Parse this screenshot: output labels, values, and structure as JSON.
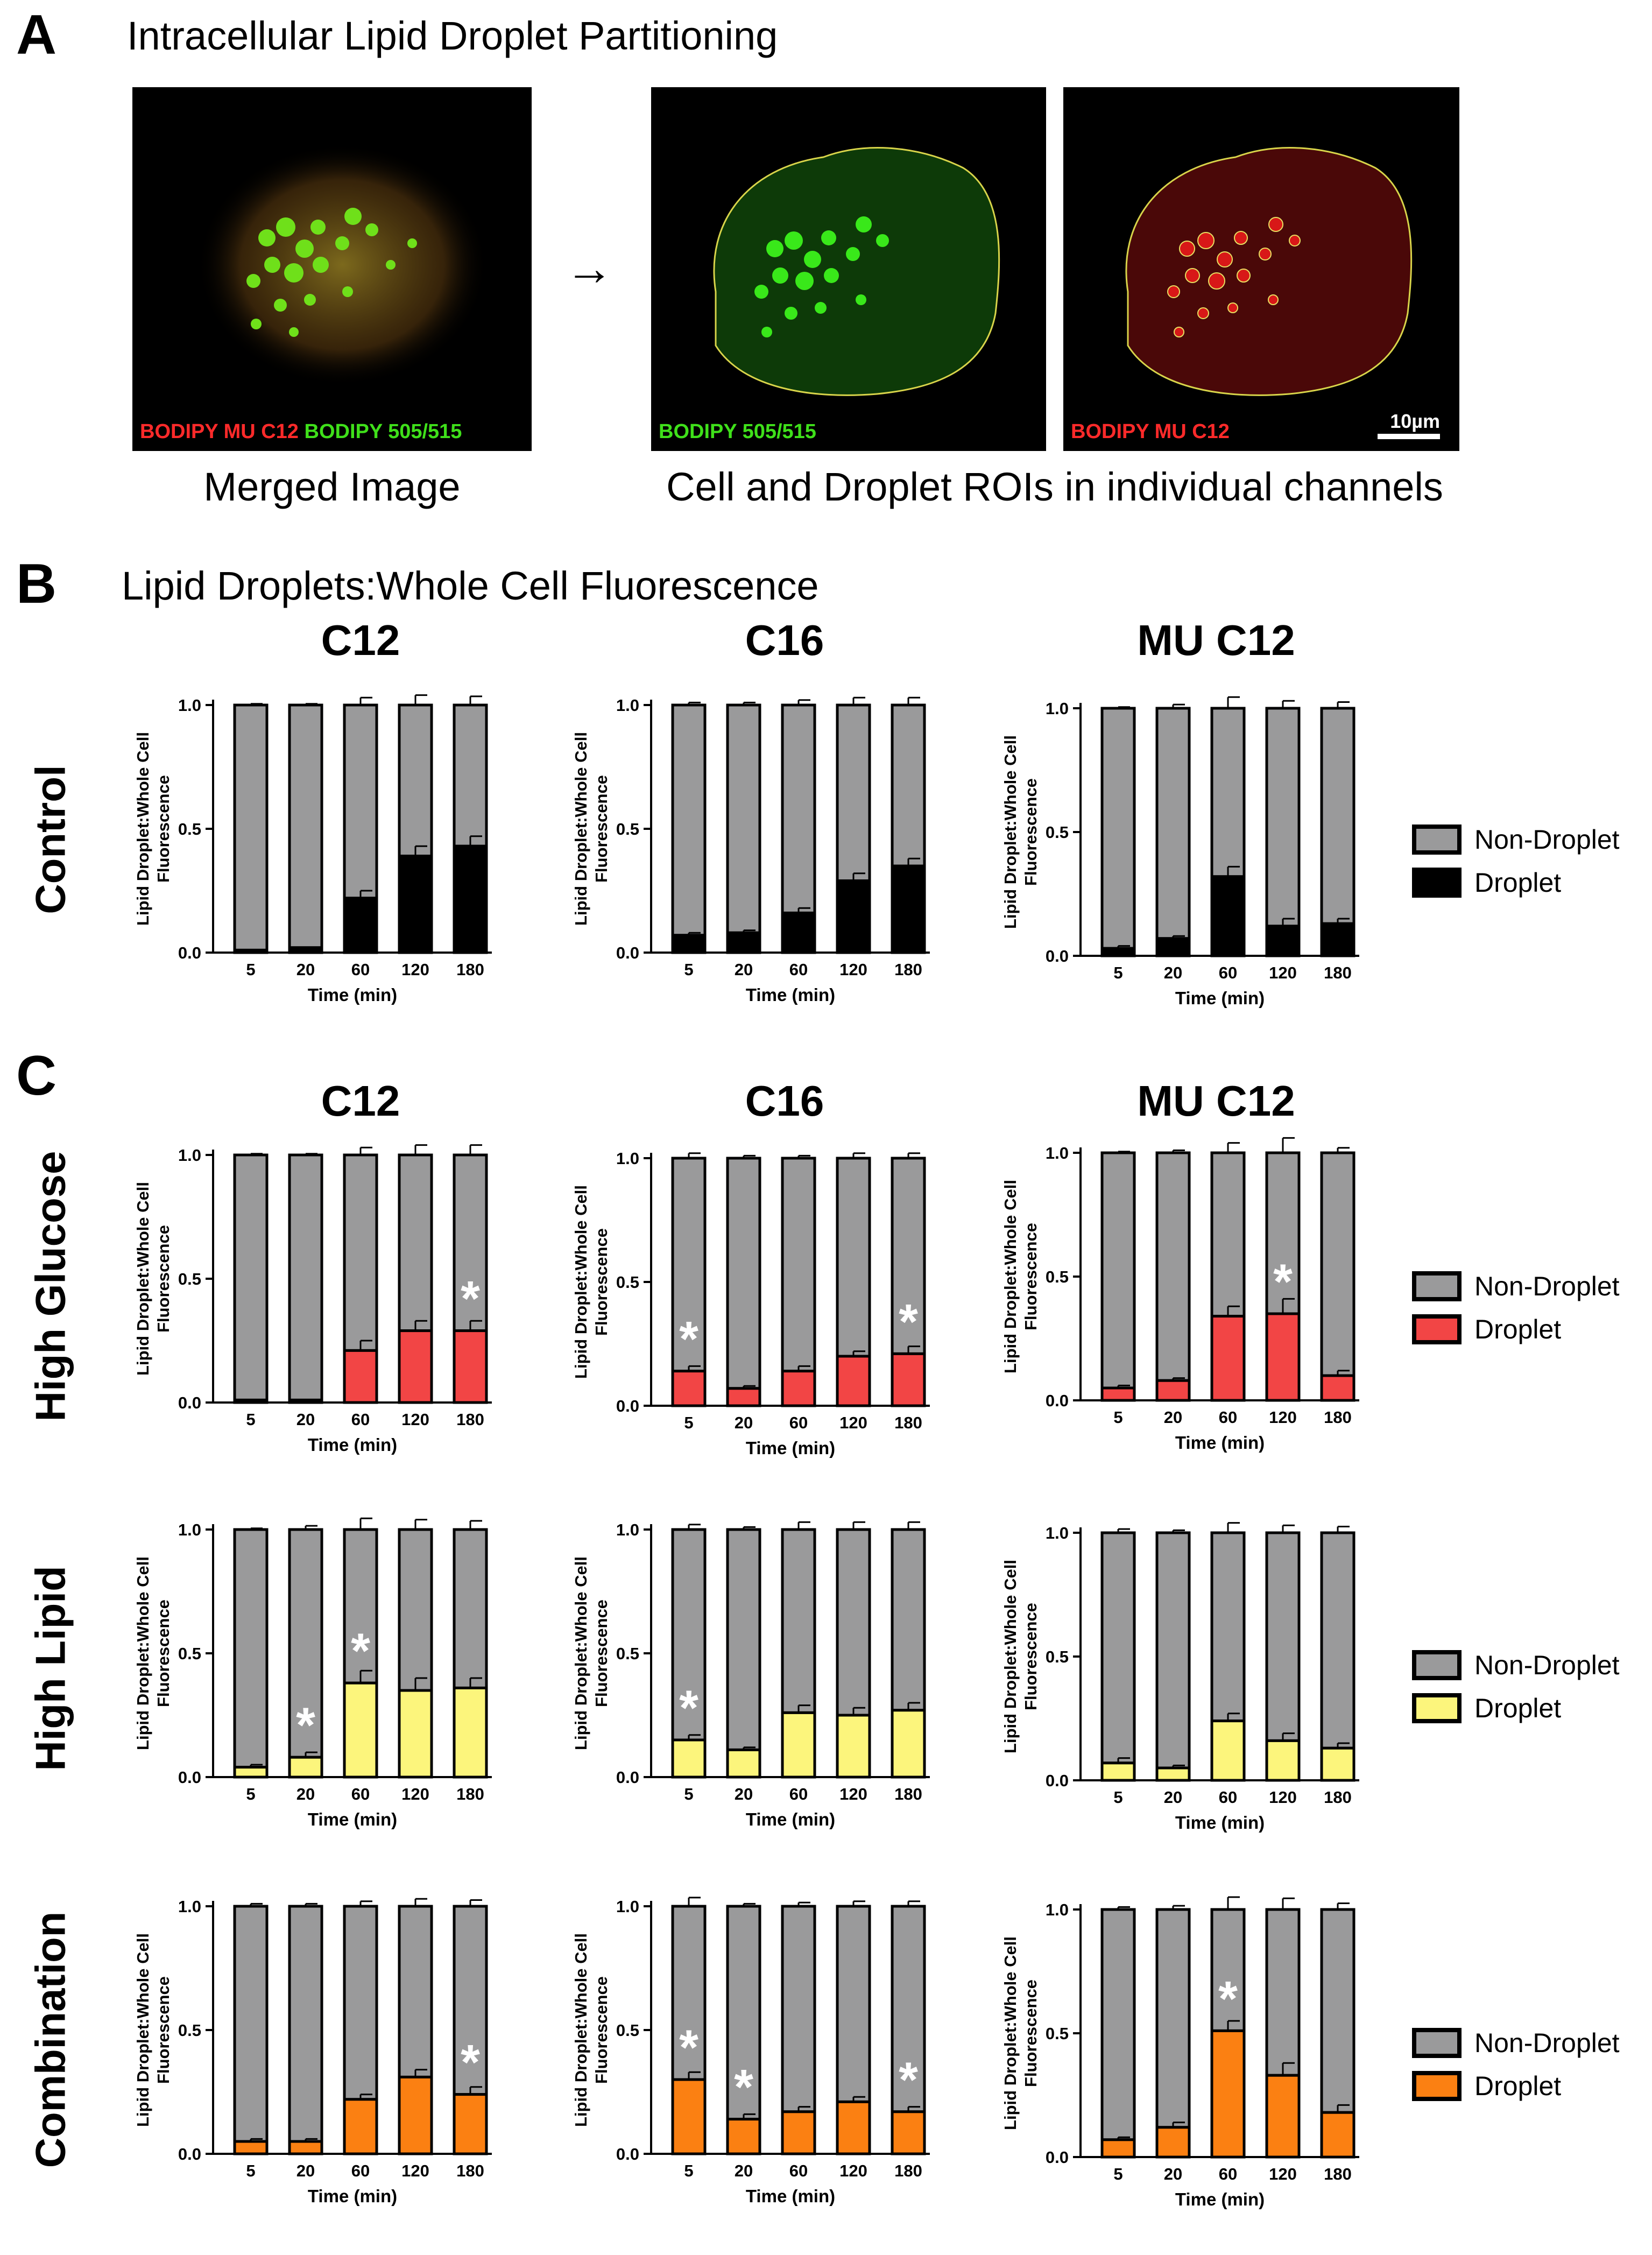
{
  "panel_a": {
    "letter": "A",
    "title": "Intracellular Lipid Droplet Partitioning",
    "merged_label_red": "BODIPY MU C12",
    "merged_label_green": "BODIPY 505/515",
    "green_channel_label": "BODIPY 505/515",
    "red_channel_label": "BODIPY MU C12",
    "scale_bar": "10µm",
    "arrow": "→",
    "merged_caption": "Merged Image",
    "channels_caption": "Cell and Droplet ROIs in individual channels"
  },
  "panel_b": {
    "letter": "B",
    "title": "Lipid Droplets:Whole Cell Fluorescence",
    "columns": [
      "C12",
      "C16",
      "MU C12"
    ],
    "row": "Control"
  },
  "panel_c": {
    "letter": "C",
    "columns": [
      "C12",
      "C16",
      "MU C12"
    ],
    "rows": [
      "High Glucose",
      "High Lipid",
      "Combination"
    ]
  },
  "legends": [
    {
      "non_droplet": "Non-Droplet",
      "droplet": "Droplet",
      "droplet_color": "#000000"
    },
    {
      "non_droplet": "Non-Droplet",
      "droplet": "Droplet",
      "droplet_color": "#f24545"
    },
    {
      "non_droplet": "Non-Droplet",
      "droplet": "Droplet",
      "droplet_color": "#fcf57c"
    },
    {
      "non_droplet": "Non-Droplet",
      "droplet": "Droplet",
      "droplet_color": "#fb8012"
    }
  ],
  "colors": {
    "non_droplet": "#9a9a9b",
    "star": "#ffffff"
  },
  "chart_data": [
    {
      "type": "bar",
      "row": "Control",
      "column": "C12",
      "categories": [
        "5",
        "20",
        "60",
        "120",
        "180"
      ],
      "xlabel": "Time (min)",
      "ylabel": "Lipid Droplet:Whole Cell Fluorescence",
      "ylim": [
        0,
        1.0
      ],
      "yticks": [
        "0.0",
        "0.5",
        "1.0"
      ],
      "droplet_color": "#000000",
      "droplet": [
        0.01,
        0.02,
        0.22,
        0.39,
        0.43
      ],
      "droplet_err": [
        0.0,
        0.0,
        0.03,
        0.04,
        0.04
      ],
      "total_err": [
        0.005,
        0.005,
        0.03,
        0.04,
        0.035
      ],
      "significant": [
        false,
        false,
        false,
        false,
        false
      ]
    },
    {
      "type": "bar",
      "row": "Control",
      "column": "C16",
      "categories": [
        "5",
        "20",
        "60",
        "120",
        "180"
      ],
      "xlabel": "Time (min)",
      "ylabel": "Lipid Droplet:Whole Cell Fluorescence",
      "ylim": [
        0,
        1.0
      ],
      "yticks": [
        "0.0",
        "0.5",
        "1.0"
      ],
      "droplet_color": "#000000",
      "droplet": [
        0.07,
        0.08,
        0.16,
        0.29,
        0.35
      ],
      "droplet_err": [
        0.01,
        0.01,
        0.02,
        0.03,
        0.03
      ],
      "total_err": [
        0.01,
        0.01,
        0.02,
        0.03,
        0.03
      ],
      "significant": [
        false,
        false,
        false,
        false,
        false
      ]
    },
    {
      "type": "bar",
      "row": "Control",
      "column": "MU C12",
      "categories": [
        "5",
        "20",
        "60",
        "120",
        "180"
      ],
      "xlabel": "Time (min)",
      "ylabel": "Lipid Droplet:Whole Cell Fluorescence",
      "ylim": [
        0,
        1.0
      ],
      "yticks": [
        "0.0",
        "0.5",
        "1.0"
      ],
      "droplet_color": "#000000",
      "droplet": [
        0.03,
        0.07,
        0.32,
        0.12,
        0.13
      ],
      "droplet_err": [
        0.01,
        0.01,
        0.04,
        0.03,
        0.02
      ],
      "total_err": [
        0.005,
        0.015,
        0.045,
        0.03,
        0.025
      ],
      "significant": [
        false,
        false,
        false,
        false,
        false
      ]
    },
    {
      "type": "bar",
      "row": "High Glucose",
      "column": "C12",
      "categories": [
        "5",
        "20",
        "60",
        "120",
        "180"
      ],
      "xlabel": "Time (min)",
      "ylabel": "Lipid Droplet:Whole Cell Fluorescence",
      "ylim": [
        0,
        1.0
      ],
      "yticks": [
        "0.0",
        "0.5",
        "1.0"
      ],
      "droplet_color": "#f24545",
      "droplet": [
        0.01,
        0.01,
        0.21,
        0.29,
        0.29
      ],
      "droplet_err": [
        0.0,
        0.0,
        0.04,
        0.04,
        0.04
      ],
      "total_err": [
        0.005,
        0.005,
        0.03,
        0.04,
        0.04
      ],
      "significant": [
        false,
        false,
        false,
        false,
        true
      ]
    },
    {
      "type": "bar",
      "row": "High Glucose",
      "column": "C16",
      "categories": [
        "5",
        "20",
        "60",
        "120",
        "180"
      ],
      "xlabel": "Time (min)",
      "ylabel": "Lipid Droplet:Whole Cell Fluorescence",
      "ylim": [
        0,
        1.0
      ],
      "yticks": [
        "0.0",
        "0.5",
        "1.0"
      ],
      "droplet_color": "#f24545",
      "droplet": [
        0.14,
        0.07,
        0.14,
        0.2,
        0.21
      ],
      "droplet_err": [
        0.02,
        0.01,
        0.02,
        0.02,
        0.03
      ],
      "total_err": [
        0.02,
        0.01,
        0.01,
        0.02,
        0.02
      ],
      "significant": [
        true,
        false,
        false,
        false,
        true
      ]
    },
    {
      "type": "bar",
      "row": "High Glucose",
      "column": "MU C12",
      "categories": [
        "5",
        "20",
        "60",
        "120",
        "180"
      ],
      "xlabel": "Time (min)",
      "ylabel": "Lipid Droplet:Whole Cell Fluorescence",
      "ylim": [
        0,
        1.0
      ],
      "yticks": [
        "0.0",
        "0.5",
        "1.0"
      ],
      "droplet_color": "#f24545",
      "droplet": [
        0.05,
        0.08,
        0.34,
        0.35,
        0.1
      ],
      "droplet_err": [
        0.01,
        0.01,
        0.04,
        0.06,
        0.02
      ],
      "total_err": [
        0.005,
        0.01,
        0.04,
        0.06,
        0.02
      ],
      "significant": [
        false,
        false,
        false,
        true,
        false
      ]
    },
    {
      "type": "bar",
      "row": "High Lipid",
      "column": "C12",
      "categories": [
        "5",
        "20",
        "60",
        "120",
        "180"
      ],
      "xlabel": "Time (min)",
      "ylabel": "Lipid Droplet:Whole Cell Fluorescence",
      "ylim": [
        0,
        1.0
      ],
      "yticks": [
        "0.0",
        "0.5",
        "1.0"
      ],
      "droplet_color": "#fcf57c",
      "droplet": [
        0.04,
        0.08,
        0.38,
        0.35,
        0.36
      ],
      "droplet_err": [
        0.01,
        0.02,
        0.05,
        0.05,
        0.04
      ],
      "total_err": [
        0.005,
        0.015,
        0.045,
        0.04,
        0.035
      ],
      "significant": [
        false,
        true,
        true,
        false,
        false
      ]
    },
    {
      "type": "bar",
      "row": "High Lipid",
      "column": "C16",
      "categories": [
        "5",
        "20",
        "60",
        "120",
        "180"
      ],
      "xlabel": "Time (min)",
      "ylabel": "Lipid Droplet:Whole Cell Fluorescence",
      "ylim": [
        0,
        1.0
      ],
      "yticks": [
        "0.0",
        "0.5",
        "1.0"
      ],
      "droplet_color": "#fcf57c",
      "droplet": [
        0.15,
        0.11,
        0.26,
        0.25,
        0.27
      ],
      "droplet_err": [
        0.02,
        0.01,
        0.03,
        0.03,
        0.03
      ],
      "total_err": [
        0.02,
        0.01,
        0.03,
        0.03,
        0.03
      ],
      "significant": [
        true,
        false,
        false,
        false,
        false
      ]
    },
    {
      "type": "bar",
      "row": "High Lipid",
      "column": "MU C12",
      "categories": [
        "5",
        "20",
        "60",
        "120",
        "180"
      ],
      "xlabel": "Time (min)",
      "ylabel": "Lipid Droplet:Whole Cell Fluorescence",
      "ylim": [
        0,
        1.0
      ],
      "yticks": [
        "0.0",
        "0.5",
        "1.0"
      ],
      "droplet_color": "#fcf57c",
      "droplet": [
        0.07,
        0.05,
        0.24,
        0.16,
        0.13
      ],
      "droplet_err": [
        0.02,
        0.01,
        0.03,
        0.03,
        0.02
      ],
      "total_err": [
        0.015,
        0.01,
        0.04,
        0.03,
        0.025
      ],
      "significant": [
        false,
        false,
        false,
        false,
        false
      ]
    },
    {
      "type": "bar",
      "row": "Combination",
      "column": "C12",
      "categories": [
        "5",
        "20",
        "60",
        "120",
        "180"
      ],
      "xlabel": "Time (min)",
      "ylabel": "Lipid Droplet:Whole Cell Fluorescence",
      "ylim": [
        0,
        1.0
      ],
      "yticks": [
        "0.0",
        "0.5",
        "1.0"
      ],
      "droplet_color": "#fb8012",
      "droplet": [
        0.05,
        0.05,
        0.22,
        0.31,
        0.24
      ],
      "droplet_err": [
        0.01,
        0.01,
        0.02,
        0.03,
        0.03
      ],
      "total_err": [
        0.01,
        0.01,
        0.02,
        0.03,
        0.025
      ],
      "significant": [
        false,
        false,
        false,
        false,
        true
      ]
    },
    {
      "type": "bar",
      "row": "Combination",
      "column": "C16",
      "categories": [
        "5",
        "20",
        "60",
        "120",
        "180"
      ],
      "xlabel": "Time (min)",
      "ylabel": "Lipid Droplet:Whole Cell Fluorescence",
      "ylim": [
        0,
        1.0
      ],
      "yticks": [
        "0.0",
        "0.5",
        "1.0"
      ],
      "droplet_color": "#fb8012",
      "droplet": [
        0.3,
        0.14,
        0.17,
        0.21,
        0.17
      ],
      "droplet_err": [
        0.03,
        0.02,
        0.02,
        0.02,
        0.02
      ],
      "total_err": [
        0.035,
        0.01,
        0.015,
        0.02,
        0.02
      ],
      "significant": [
        true,
        true,
        false,
        false,
        true
      ]
    },
    {
      "type": "bar",
      "row": "Combination",
      "column": "MU C12",
      "categories": [
        "5",
        "20",
        "60",
        "120",
        "180"
      ],
      "xlabel": "Time (min)",
      "ylabel": "Lipid Droplet:Whole Cell Fluorescence",
      "ylim": [
        0,
        1.0
      ],
      "yticks": [
        "0.0",
        "0.5",
        "1.0"
      ],
      "droplet_color": "#fb8012",
      "droplet": [
        0.07,
        0.12,
        0.51,
        0.33,
        0.18
      ],
      "droplet_err": [
        0.01,
        0.02,
        0.04,
        0.05,
        0.03
      ],
      "total_err": [
        0.01,
        0.015,
        0.05,
        0.045,
        0.025
      ],
      "significant": [
        false,
        false,
        true,
        false,
        false
      ]
    }
  ]
}
